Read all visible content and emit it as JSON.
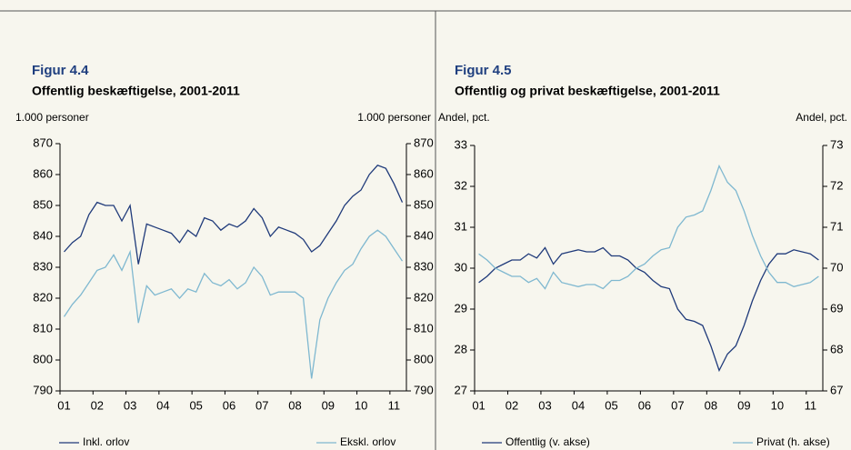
{
  "chart_data": [
    {
      "type": "line",
      "title": "Figur 4.4",
      "subtitle": "Offentlig beskæftigelse, 2001-2011",
      "y_label": "1.000 personer",
      "y2_label": "1.000 personer",
      "legend": "bottom",
      "categories": [
        "01",
        null,
        null,
        null,
        "02",
        null,
        null,
        null,
        "03",
        null,
        null,
        null,
        "04",
        null,
        null,
        null,
        "05",
        null,
        null,
        null,
        "06",
        null,
        null,
        null,
        "07",
        null,
        null,
        null,
        "08",
        null,
        null,
        null,
        "09",
        null,
        null,
        null,
        "10",
        null,
        null,
        null,
        "11",
        null
      ],
      "series": [
        {
          "name": "Inkl. orlov",
          "color": "#1f3a7a",
          "axis": "y",
          "values": [
            835,
            838,
            840,
            847,
            851,
            850,
            850,
            845,
            850,
            831,
            844,
            843,
            842,
            841,
            838,
            842,
            840,
            846,
            845,
            842,
            844,
            843,
            845,
            849,
            846,
            840,
            843,
            842,
            841,
            839,
            835,
            837,
            841,
            845,
            850,
            853,
            855,
            860,
            863,
            862,
            857,
            851
          ]
        },
        {
          "name": "Ekskl. orlov",
          "color": "#7fb8d0",
          "axis": "y",
          "values": [
            814,
            818,
            821,
            825,
            829,
            830,
            834,
            829,
            835,
            812,
            824,
            821,
            822,
            823,
            820,
            823,
            822,
            828,
            825,
            824,
            826,
            823,
            825,
            830,
            827,
            821,
            822,
            822,
            822,
            820,
            794,
            813,
            820,
            825,
            829,
            831,
            836,
            840,
            842,
            840,
            836,
            832
          ]
        }
      ],
      "ylim": [
        790,
        870
      ],
      "yticks": [
        790,
        800,
        810,
        820,
        830,
        840,
        850,
        860,
        870
      ],
      "y2lim": [
        790,
        870
      ],
      "y2ticks": [
        790,
        800,
        810,
        820,
        830,
        840,
        850,
        860,
        870
      ]
    },
    {
      "type": "line",
      "title": "Figur 4.5",
      "subtitle": "Offentlig og privat beskæftigelse, 2001-2011",
      "y_label": "Andel, pct.",
      "y2_label": "Andel, pct.",
      "legend": "bottom",
      "categories": [
        "01",
        null,
        null,
        null,
        "02",
        null,
        null,
        null,
        "03",
        null,
        null,
        null,
        "04",
        null,
        null,
        null,
        "05",
        null,
        null,
        null,
        "06",
        null,
        null,
        null,
        "07",
        null,
        null,
        null,
        "08",
        null,
        null,
        null,
        "09",
        null,
        null,
        null,
        "10",
        null,
        null,
        null,
        "11",
        null
      ],
      "series": [
        {
          "name": "Offentlig (v. akse)",
          "color": "#1f3a7a",
          "axis": "y",
          "values": [
            29.65,
            29.8,
            30.0,
            30.1,
            30.2,
            30.2,
            30.35,
            30.25,
            30.5,
            30.1,
            30.35,
            30.4,
            30.45,
            30.4,
            30.4,
            30.5,
            30.3,
            30.3,
            30.2,
            30.0,
            29.9,
            29.7,
            29.55,
            29.5,
            29.0,
            28.75,
            28.7,
            28.6,
            28.1,
            27.5,
            27.9,
            28.1,
            28.6,
            29.2,
            29.7,
            30.1,
            30.35,
            30.35,
            30.45,
            30.4,
            30.35,
            30.2
          ]
        },
        {
          "name": "Privat (h. akse)",
          "color": "#7fb8d0",
          "axis": "y2",
          "values": [
            70.35,
            70.2,
            70.0,
            69.9,
            69.8,
            69.8,
            69.65,
            69.75,
            69.5,
            69.9,
            69.65,
            69.6,
            69.55,
            69.6,
            69.6,
            69.5,
            69.7,
            69.7,
            69.8,
            70.0,
            70.1,
            70.3,
            70.45,
            70.5,
            71.0,
            71.25,
            71.3,
            71.4,
            71.9,
            72.5,
            72.1,
            71.9,
            71.4,
            70.8,
            70.3,
            69.9,
            69.65,
            69.65,
            69.55,
            69.6,
            69.65,
            69.8
          ]
        }
      ],
      "ylim": [
        27,
        33
      ],
      "yticks": [
        27,
        28,
        29,
        30,
        31,
        32,
        33
      ],
      "y2lim": [
        67,
        73
      ],
      "y2ticks": [
        67,
        68,
        69,
        70,
        71,
        72,
        73
      ]
    }
  ]
}
